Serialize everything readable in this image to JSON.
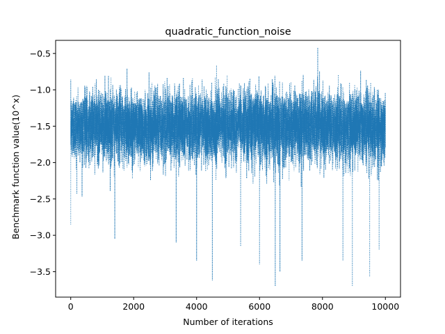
{
  "chart_data": {
    "type": "line",
    "title": "quadratic_function_noise",
    "xlabel": "Number of iterations",
    "ylabel": "Benchmark function value(10^x)",
    "xlim": [
      -480,
      10480
    ],
    "ylim": [
      -3.85,
      -0.32
    ],
    "xticks": [
      0,
      2000,
      4000,
      6000,
      8000,
      10000
    ],
    "yticks": [
      -3.5,
      -3.0,
      -2.5,
      -2.0,
      -1.5,
      -1.0,
      -0.5
    ],
    "xtick_labels": [
      "0",
      "2000",
      "4000",
      "6000",
      "8000",
      "10000"
    ],
    "ytick_labels": [
      "−3.5",
      "−3.0",
      "−2.5",
      "−2.0",
      "−1.5",
      "−1.0",
      "−0.5"
    ],
    "grid": false,
    "line_style": "dotted",
    "series": [
      {
        "color": "#1f77b4",
        "x_range": [
          0,
          10000
        ],
        "n_points": 10000,
        "band_center": -1.5,
        "dense_band": [
          -2.2,
          -0.8
        ],
        "upper_envelope": [
          -0.6,
          -0.7
        ],
        "lower_envelope": [
          -2.8,
          -3.0
        ],
        "notable_points": [
          {
            "x": 0,
            "y": -2.85
          },
          {
            "x": 1400,
            "y": -3.05
          },
          {
            "x": 3350,
            "y": -3.1
          },
          {
            "x": 4000,
            "y": -3.35
          },
          {
            "x": 4500,
            "y": -3.62
          },
          {
            "x": 5400,
            "y": -3.15
          },
          {
            "x": 6000,
            "y": -3.4
          },
          {
            "x": 6500,
            "y": -3.7
          },
          {
            "x": 6650,
            "y": -3.5
          },
          {
            "x": 7350,
            "y": -3.35
          },
          {
            "x": 7850,
            "y": -0.42
          },
          {
            "x": 8650,
            "y": -3.35
          },
          {
            "x": 8950,
            "y": -3.7
          },
          {
            "x": 9500,
            "y": -3.57
          },
          {
            "x": 9800,
            "y": -3.2
          }
        ]
      }
    ]
  }
}
